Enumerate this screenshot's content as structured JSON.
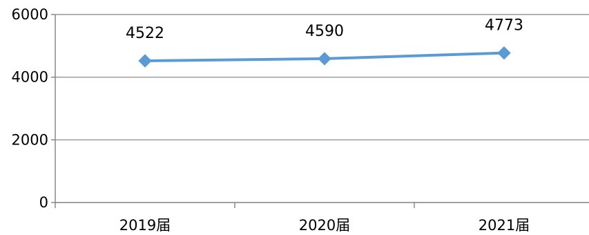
{
  "chart_data": {
    "type": "line",
    "title": "",
    "xlabel": "",
    "ylabel": "",
    "categories": [
      "2019届",
      "2020届",
      "2021届"
    ],
    "series": [
      {
        "values": [
          4522,
          4590,
          4773
        ],
        "color": "#5B9BD5",
        "marker": "diamond",
        "data_labels": [
          "4522",
          "4590",
          "4773"
        ]
      }
    ],
    "ylim": [
      0,
      6000
    ],
    "yticks": [
      0,
      2000,
      4000,
      6000
    ],
    "ytick_labels": [
      "0",
      "2000",
      "4000",
      "6000"
    ],
    "grid": true,
    "legend": "none"
  }
}
